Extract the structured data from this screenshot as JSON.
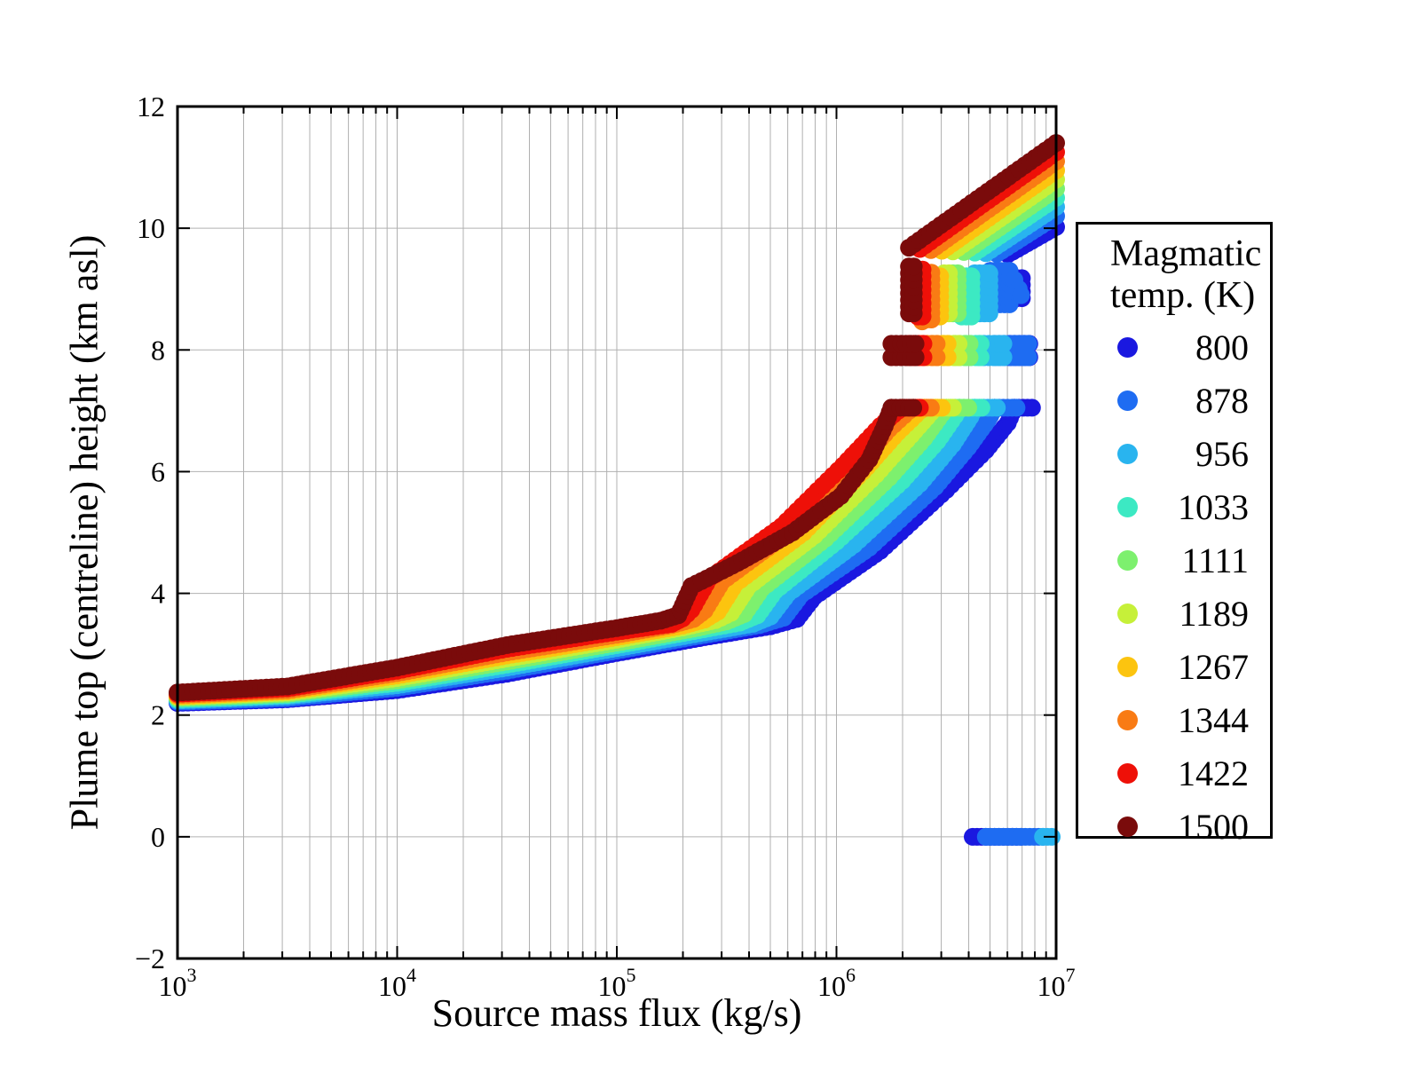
{
  "chart_data": {
    "type": "scatter",
    "title": "",
    "xlabel": "Source mass flux (kg/s)",
    "ylabel": "Plume top (centreline) height (km asl)",
    "x_scale": "log",
    "x_range_log10": [
      3,
      7
    ],
    "ylim": [
      -2,
      12
    ],
    "x_tick_exponents": [
      3,
      4,
      5,
      6,
      7
    ],
    "y_ticks": [
      -2,
      0,
      2,
      4,
      6,
      8,
      10,
      12
    ],
    "grid": {
      "color": "#b0b0b0",
      "x_minor": true,
      "y_major": true
    },
    "marker_size_px": 20,
    "legend": {
      "title_lines": [
        "Magmatic",
        "temp. (K)"
      ],
      "position": "right"
    },
    "series": [
      {
        "temp": 800,
        "color": "#1a18e0",
        "curve": [
          [
            3.0,
            2.2
          ],
          [
            3.5,
            2.26
          ],
          [
            4.0,
            2.41
          ],
          [
            4.5,
            2.68
          ],
          [
            5.0,
            3.02
          ],
          [
            5.4,
            3.28
          ],
          [
            5.7,
            3.46
          ],
          [
            5.82,
            3.58
          ],
          [
            5.9,
            3.95
          ],
          [
            6.2,
            4.7
          ],
          [
            6.5,
            5.7
          ],
          [
            6.68,
            6.35
          ],
          [
            6.78,
            6.8
          ],
          [
            6.81,
            7.05
          ]
        ],
        "cap": [
          6.81,
          6.9
        ],
        "band8": {
          "x": [
            6.79,
            6.88
          ],
          "rows": [
            7.88,
            8.1
          ]
        },
        "cluster": {
          "x": [
            6.8,
            6.85
          ],
          "y": [
            8.85,
            9.2
          ]
        },
        "top": [
          6.78,
          9.57,
          7.0,
          10.02
        ],
        "zero": [
          6.62,
          6.84
        ]
      },
      {
        "temp": 878,
        "color": "#1e6cf2",
        "curve": [
          [
            3.0,
            2.22
          ],
          [
            3.5,
            2.28
          ],
          [
            4.0,
            2.45
          ],
          [
            4.5,
            2.73
          ],
          [
            5.0,
            3.06
          ],
          [
            5.4,
            3.32
          ],
          [
            5.65,
            3.48
          ],
          [
            5.76,
            3.6
          ],
          [
            5.84,
            3.98
          ],
          [
            6.15,
            4.75
          ],
          [
            6.45,
            5.75
          ],
          [
            6.6,
            6.4
          ],
          [
            6.69,
            6.85
          ],
          [
            6.72,
            7.05
          ]
        ],
        "cap": [
          6.72,
          6.82
        ],
        "band8": {
          "x": [
            6.72,
            6.88
          ],
          "rows": [
            7.88,
            8.1
          ]
        },
        "cluster": {
          "x": [
            6.7,
            6.79
          ],
          "y": [
            8.75,
            9.35
          ]
        },
        "extra": [
          [
            6.81,
            9.15
          ],
          [
            6.83,
            9.0
          ],
          [
            6.84,
            8.9
          ]
        ],
        "top": [
          6.73,
          9.58,
          7.0,
          10.2
        ],
        "zero": [
          6.68,
          6.94
        ]
      },
      {
        "temp": 956,
        "color": "#29b4ef",
        "curve": [
          [
            3.0,
            2.24
          ],
          [
            3.5,
            2.31
          ],
          [
            4.0,
            2.49
          ],
          [
            4.5,
            2.78
          ],
          [
            5.0,
            3.1
          ],
          [
            5.4,
            3.36
          ],
          [
            5.62,
            3.5
          ],
          [
            5.7,
            3.62
          ],
          [
            5.78,
            4.0
          ],
          [
            6.08,
            4.8
          ],
          [
            6.38,
            5.8
          ],
          [
            6.53,
            6.45
          ],
          [
            6.61,
            6.9
          ],
          [
            6.63,
            7.05
          ]
        ],
        "cap": [
          6.63,
          6.74
        ],
        "band8": {
          "x": [
            6.65,
            6.76
          ],
          "rows": [
            7.88,
            8.1
          ]
        },
        "cluster": {
          "x": [
            6.63,
            6.7
          ],
          "y": [
            8.6,
            9.3
          ]
        },
        "top": [
          6.68,
          9.59,
          7.0,
          10.35
        ],
        "zero": [
          6.94,
          6.99
        ]
      },
      {
        "temp": 1033,
        "color": "#3ce9c3",
        "curve": [
          [
            3.0,
            2.26
          ],
          [
            3.5,
            2.33
          ],
          [
            4.0,
            2.53
          ],
          [
            4.5,
            2.83
          ],
          [
            5.0,
            3.15
          ],
          [
            5.35,
            3.38
          ],
          [
            5.56,
            3.52
          ],
          [
            5.64,
            3.64
          ],
          [
            5.72,
            4.04
          ],
          [
            6.0,
            4.85
          ],
          [
            6.3,
            5.85
          ],
          [
            6.46,
            6.5
          ],
          [
            6.54,
            6.92
          ],
          [
            6.56,
            7.05
          ]
        ],
        "cap": [
          6.56,
          6.66
        ],
        "band8": {
          "x": [
            6.59,
            6.67
          ],
          "rows": [
            7.88,
            8.1
          ]
        },
        "cluster": {
          "x": [
            6.57,
            6.62
          ],
          "y": [
            8.55,
            9.3
          ]
        },
        "top": [
          6.63,
          9.6,
          7.0,
          10.5
        ]
      },
      {
        "temp": 1111,
        "color": "#7df06e",
        "curve": [
          [
            3.0,
            2.28
          ],
          [
            3.5,
            2.35
          ],
          [
            4.0,
            2.57
          ],
          [
            4.5,
            2.88
          ],
          [
            5.0,
            3.19
          ],
          [
            5.35,
            3.42
          ],
          [
            5.5,
            3.54
          ],
          [
            5.58,
            3.66
          ],
          [
            5.66,
            4.08
          ],
          [
            5.95,
            4.9
          ],
          [
            6.24,
            5.9
          ],
          [
            6.4,
            6.55
          ],
          [
            6.48,
            6.95
          ],
          [
            6.5,
            7.05
          ]
        ],
        "cap": [
          6.5,
          6.6
        ],
        "band8": {
          "x": [
            6.54,
            6.61
          ],
          "rows": [
            7.88,
            8.1
          ]
        },
        "cluster": {
          "x": [
            6.53,
            6.57
          ],
          "y": [
            8.6,
            9.3
          ]
        },
        "top": [
          6.58,
          9.61,
          7.0,
          10.65
        ]
      },
      {
        "temp": 1189,
        "color": "#c6f039",
        "curve": [
          [
            3.0,
            2.3
          ],
          [
            3.5,
            2.37
          ],
          [
            4.0,
            2.61
          ],
          [
            4.5,
            2.93
          ],
          [
            5.0,
            3.24
          ],
          [
            5.3,
            3.44
          ],
          [
            5.45,
            3.56
          ],
          [
            5.52,
            3.68
          ],
          [
            5.6,
            4.12
          ],
          [
            5.9,
            4.95
          ],
          [
            6.18,
            5.95
          ],
          [
            6.34,
            6.6
          ],
          [
            6.43,
            6.97
          ],
          [
            6.45,
            7.05
          ]
        ],
        "cap": [
          6.45,
          6.54
        ],
        "band8": {
          "x": [
            6.49,
            6.56
          ],
          "rows": [
            7.88,
            8.1
          ]
        },
        "cluster": {
          "x": [
            6.49,
            6.53
          ],
          "y": [
            8.6,
            9.3
          ]
        },
        "top": [
          6.53,
          9.62,
          7.0,
          10.8
        ]
      },
      {
        "temp": 1267,
        "color": "#fcc40f",
        "curve": [
          [
            3.0,
            2.31
          ],
          [
            3.5,
            2.39
          ],
          [
            4.0,
            2.65
          ],
          [
            4.5,
            2.98
          ],
          [
            5.0,
            3.28
          ],
          [
            5.3,
            3.47
          ],
          [
            5.4,
            3.57
          ],
          [
            5.46,
            3.7
          ],
          [
            5.54,
            4.16
          ],
          [
            5.85,
            5.0
          ],
          [
            6.12,
            6.0
          ],
          [
            6.28,
            6.65
          ],
          [
            6.38,
            7.0
          ],
          [
            6.4,
            7.05
          ]
        ],
        "cap": [
          6.4,
          6.49
        ],
        "band8": {
          "x": [
            6.44,
            6.51
          ],
          "rows": [
            7.88,
            8.1
          ]
        },
        "cluster": {
          "x": [
            6.45,
            6.49
          ],
          "y": [
            8.55,
            9.3
          ]
        },
        "top": [
          6.48,
          9.63,
          7.0,
          10.95
        ]
      },
      {
        "temp": 1344,
        "color": "#f97b14",
        "curve": [
          [
            3.0,
            2.33
          ],
          [
            3.5,
            2.41
          ],
          [
            4.0,
            2.69
          ],
          [
            4.5,
            3.03
          ],
          [
            5.0,
            3.32
          ],
          [
            5.25,
            3.48
          ],
          [
            5.35,
            3.58
          ],
          [
            5.4,
            3.72
          ],
          [
            5.48,
            4.2
          ],
          [
            5.8,
            5.05
          ],
          [
            6.08,
            6.05
          ],
          [
            6.24,
            6.7
          ],
          [
            6.33,
            7.0
          ],
          [
            6.35,
            7.05
          ]
        ],
        "cap": [
          6.35,
          6.44
        ],
        "band8": {
          "x": [
            6.39,
            6.46
          ],
          "rows": [
            7.88,
            8.1
          ]
        },
        "cluster": {
          "x": [
            6.41,
            6.45
          ],
          "y": [
            8.5,
            9.3
          ]
        },
        "extra": [
          [
            6.39,
            8.47
          ]
        ],
        "top": [
          6.43,
          9.64,
          7.0,
          11.1
        ]
      },
      {
        "temp": 1422,
        "color": "#ee1008",
        "curve": [
          [
            3.0,
            2.35
          ],
          [
            3.5,
            2.44
          ],
          [
            4.0,
            2.73
          ],
          [
            4.5,
            3.09
          ],
          [
            5.0,
            3.37
          ],
          [
            5.25,
            3.5
          ],
          [
            5.3,
            3.59
          ],
          [
            5.34,
            3.73
          ],
          [
            5.42,
            4.24
          ],
          [
            5.75,
            5.1
          ],
          [
            6.03,
            6.1
          ],
          [
            6.2,
            6.75
          ],
          [
            6.28,
            7.0
          ],
          [
            6.3,
            7.05
          ]
        ],
        "cap": [
          6.3,
          6.39
        ],
        "band8": {
          "x": [
            6.33,
            6.41
          ],
          "rows": [
            7.88,
            8.1
          ]
        },
        "cluster": {
          "x": [
            6.37,
            6.41
          ],
          "y": [
            8.55,
            9.35
          ]
        },
        "top": [
          6.38,
          9.66,
          7.0,
          11.25
        ]
      },
      {
        "temp": 1500,
        "color": "#7a0b0b",
        "curve": [
          [
            3.0,
            2.37
          ],
          [
            3.5,
            2.47
          ],
          [
            4.0,
            2.78
          ],
          [
            4.5,
            3.15
          ],
          [
            5.0,
            3.43
          ],
          [
            5.2,
            3.55
          ],
          [
            5.28,
            3.64
          ],
          [
            5.34,
            4.12
          ],
          [
            5.55,
            4.5
          ],
          [
            5.8,
            5.0
          ],
          [
            6.02,
            5.6
          ],
          [
            6.15,
            6.2
          ],
          [
            6.22,
            6.75
          ],
          [
            6.25,
            7.05
          ]
        ],
        "cap": [
          6.25,
          6.35
        ],
        "band8": {
          "x": [
            6.25,
            6.36
          ],
          "rows": [
            7.88,
            8.1
          ]
        },
        "cluster": {
          "x": [
            6.33,
            6.37
          ],
          "y": [
            8.6,
            9.4
          ]
        },
        "top": [
          6.33,
          9.68,
          7.0,
          11.4
        ]
      }
    ]
  }
}
